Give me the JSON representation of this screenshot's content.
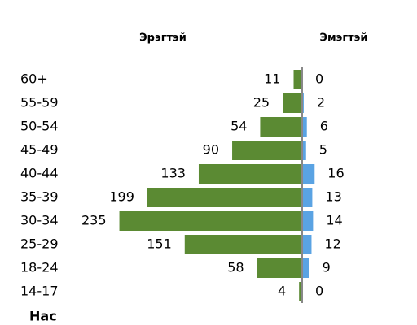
{
  "chart_data": {
    "type": "pyramid",
    "categories": [
      "60+",
      "55-59",
      "50-54",
      "45-49",
      "40-44",
      "35-39",
      "30-34",
      "25-29",
      "18-24",
      "14-17"
    ],
    "series": [
      {
        "name": "Эрэгтэй",
        "color": "#5b8a33",
        "values": [
          11,
          25,
          54,
          90,
          133,
          199,
          235,
          151,
          58,
          4
        ]
      },
      {
        "name": "Эмэгтэй",
        "color": "#5aa3e3",
        "values": [
          0,
          2,
          6,
          5,
          16,
          13,
          14,
          12,
          9,
          0
        ]
      }
    ],
    "xlim": [
      0,
      245
    ],
    "y_label": "Нас"
  }
}
